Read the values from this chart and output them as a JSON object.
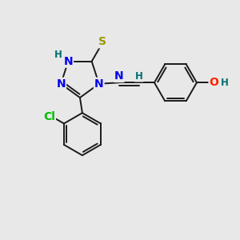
{
  "background_color": "#e8e8e8",
  "bond_color": "#1a1a1a",
  "colors": {
    "N": "#0000ee",
    "S": "#999900",
    "O": "#ff2200",
    "Cl": "#00bb00",
    "C": "#1a1a1a",
    "H": "#007070"
  },
  "font_size_atoms": 10,
  "font_size_h": 8.5,
  "lw": 1.4
}
